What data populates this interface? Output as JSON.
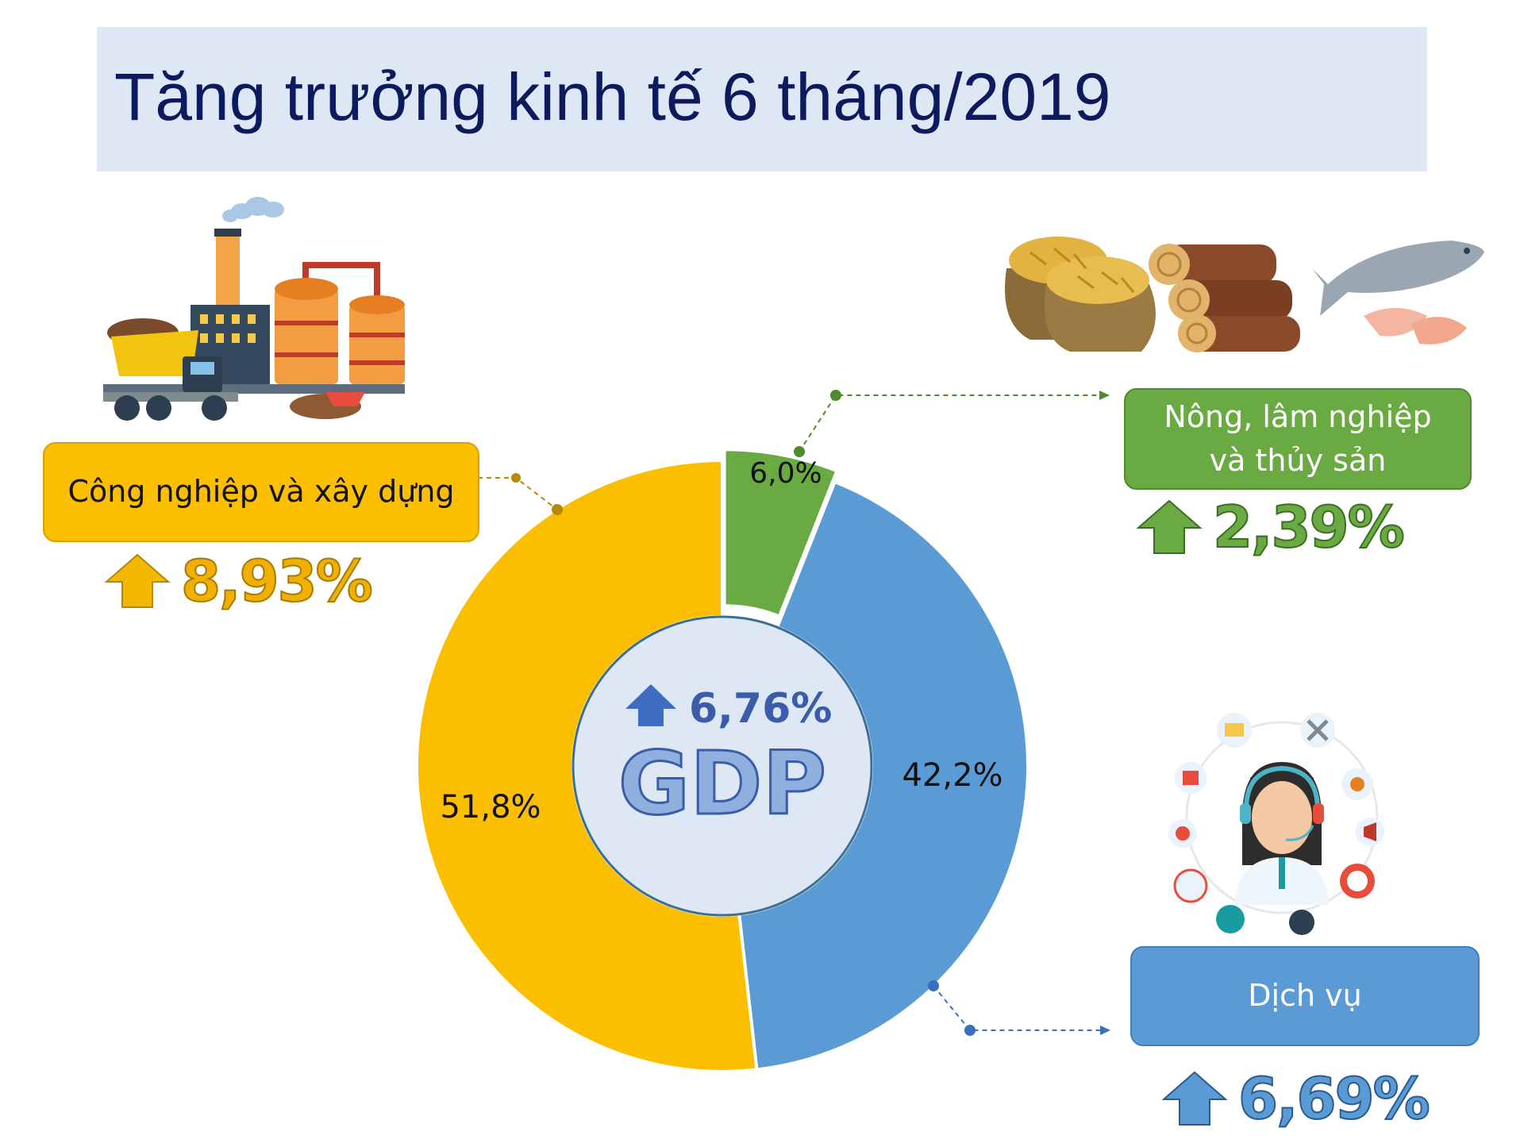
{
  "title": "Tăng trưởng kinh tế 6 tháng/2019",
  "colors": {
    "industry": "#fbbf00",
    "agriculture": "#6aaa43",
    "service": "#5b9bd5",
    "title_band": "#dde8f4",
    "title_text": "#0d1a5e",
    "center_fill": "#dde8f4",
    "center_text": "#3b5ca8"
  },
  "icons": [
    "factory-illustration",
    "agriculture-forestry-fishery-illustration",
    "call-center-service-illustration",
    "up-arrow-icon"
  ],
  "center": {
    "growth": "6,76%",
    "label": "GDP"
  },
  "sectors": {
    "industry": {
      "name": "Công nghiệp và xây dựng",
      "growth": "8,93%",
      "share_label": "51,8%"
    },
    "agriculture": {
      "name_line1": "Nông, lâm nghiệp",
      "name_line2": "và thủy sản",
      "growth": "2,39%",
      "share_label": "6,0%"
    },
    "service": {
      "name": "Dịch vụ",
      "growth": "6,69%",
      "share_label": "42,2%"
    }
  },
  "chart_data": {
    "type": "pie",
    "title": "Tăng trưởng kinh tế 6 tháng/2019",
    "center_label": "GDP",
    "center_value": "6,76%",
    "slices": [
      {
        "name": "Nông, lâm nghiệp và thủy sản",
        "value": 6.0,
        "label": "6,0%",
        "growth": "2,39%"
      },
      {
        "name": "Dịch vụ",
        "value": 42.2,
        "label": "42,2%",
        "growth": "6,69%"
      },
      {
        "name": "Công nghiệp và xây dựng",
        "value": 51.8,
        "label": "51,8%",
        "growth": "8,93%"
      }
    ]
  }
}
